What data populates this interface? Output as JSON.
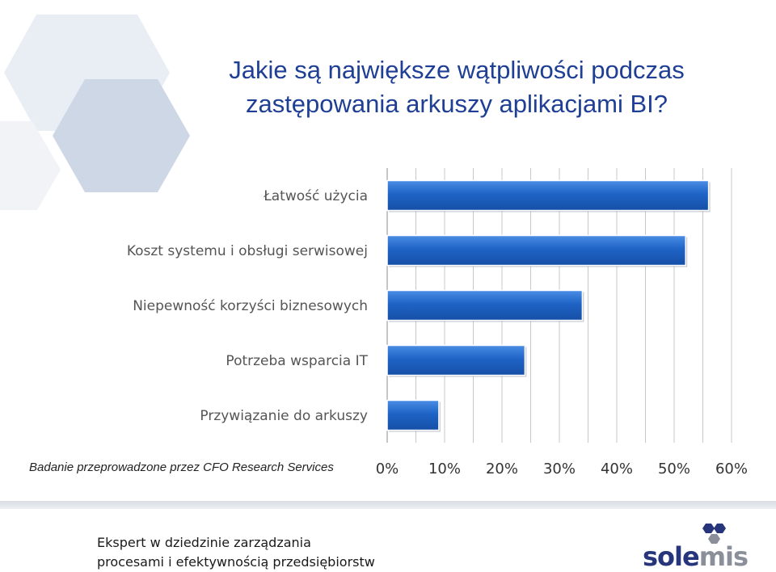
{
  "title": {
    "line1": "Jakie są największe wątpliwości podczas",
    "line2": "zastępowania arkuszy aplikacjami BI?"
  },
  "chart_data": {
    "type": "bar",
    "orientation": "horizontal",
    "categories": [
      "Łatwość użycia",
      "Koszt systemu i obsługi serwisowej",
      "Niepewność korzyści biznesowych",
      "Potrzeba wsparcia IT",
      "Przywiązanie do arkuszy"
    ],
    "values": [
      56,
      52,
      34,
      24,
      9
    ],
    "xlim": [
      0,
      60
    ],
    "x_ticks": [
      "0%",
      "10%",
      "20%",
      "30%",
      "40%",
      "50%",
      "60%"
    ],
    "grid": true,
    "bar_color": "#1f5fbf"
  },
  "source_note": "Badanie przeprowadzone przez CFO Research Services",
  "footer": {
    "line1": "Ekspert w dziedzinie zarządzania",
    "line2": "procesami i efektywnością przedsiębiorstw"
  },
  "logo": {
    "part1": "sole",
    "part2": "mis"
  }
}
